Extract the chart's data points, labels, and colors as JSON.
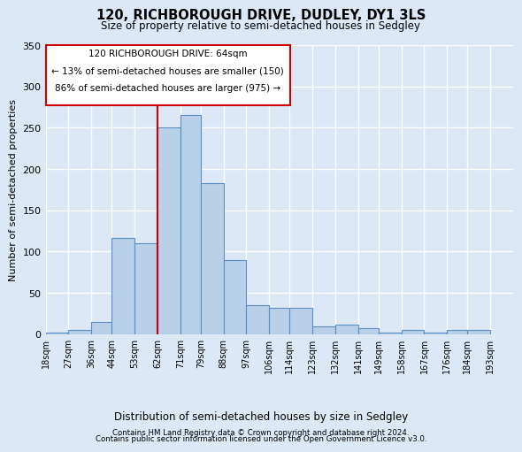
{
  "title_line1": "120, RICHBOROUGH DRIVE, DUDLEY, DY1 3LS",
  "title_line2": "Size of property relative to semi-detached houses in Sedgley",
  "xlabel": "Distribution of semi-detached houses by size in Sedgley",
  "ylabel": "Number of semi-detached properties",
  "footer_line1": "Contains HM Land Registry data © Crown copyright and database right 2024.",
  "footer_line2": "Contains public sector information licensed under the Open Government Licence v3.0.",
  "annotation_line1": "120 RICHBOROUGH DRIVE: 64sqm",
  "annotation_line2": "← 13% of semi-detached houses are smaller (150)",
  "annotation_line3": "86% of semi-detached houses are larger (975) →",
  "bar_edges": [
    18,
    27,
    36,
    44,
    53,
    62,
    71,
    79,
    88,
    97,
    106,
    114,
    123,
    132,
    141,
    149,
    158,
    167,
    176,
    184,
    193
  ],
  "bar_heights": [
    2,
    5,
    15,
    117,
    110,
    250,
    265,
    183,
    90,
    35,
    32,
    32,
    10,
    12,
    7,
    2,
    5,
    2,
    5,
    5
  ],
  "bar_color": "#b8d0e8",
  "bar_edge_color": "#5b8ec4",
  "vline_color": "#cc0000",
  "vline_x": 62,
  "ylim": [
    0,
    350
  ],
  "yticks": [
    0,
    50,
    100,
    150,
    200,
    250,
    300,
    350
  ],
  "bg_color": "#dce8f5",
  "grid_color": "#ffffff",
  "annotation_box_facecolor": "#ffffff",
  "annotation_box_edgecolor": "#cc0000"
}
